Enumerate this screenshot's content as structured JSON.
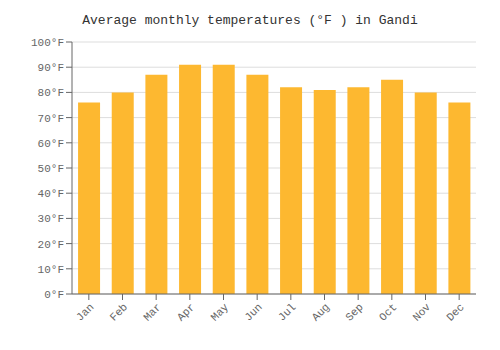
{
  "chart_data": {
    "type": "bar",
    "title": "Average monthly temperatures (°F ) in Gandi",
    "categories": [
      "Jan",
      "Feb",
      "Mar",
      "Apr",
      "May",
      "Jun",
      "Jul",
      "Aug",
      "Sep",
      "Oct",
      "Nov",
      "Dec"
    ],
    "values": [
      76,
      80,
      87,
      91,
      91,
      87,
      82,
      81,
      82,
      85,
      80,
      76
    ],
    "color": "#FDB830",
    "ylim": [
      0,
      100
    ],
    "yticks": [
      {
        "value": 0,
        "label": "0°F"
      },
      {
        "value": 10,
        "label": "10°F"
      },
      {
        "value": 20,
        "label": "20°F"
      },
      {
        "value": 30,
        "label": "30°F"
      },
      {
        "value": 40,
        "label": "40°F"
      },
      {
        "value": 50,
        "label": "50°F"
      },
      {
        "value": 60,
        "label": "60°F"
      },
      {
        "value": 70,
        "label": "70°F"
      },
      {
        "value": 80,
        "label": "80°F"
      },
      {
        "value": 90,
        "label": "90°F"
      },
      {
        "value": 100,
        "label": "100°F"
      }
    ],
    "grid": true
  }
}
